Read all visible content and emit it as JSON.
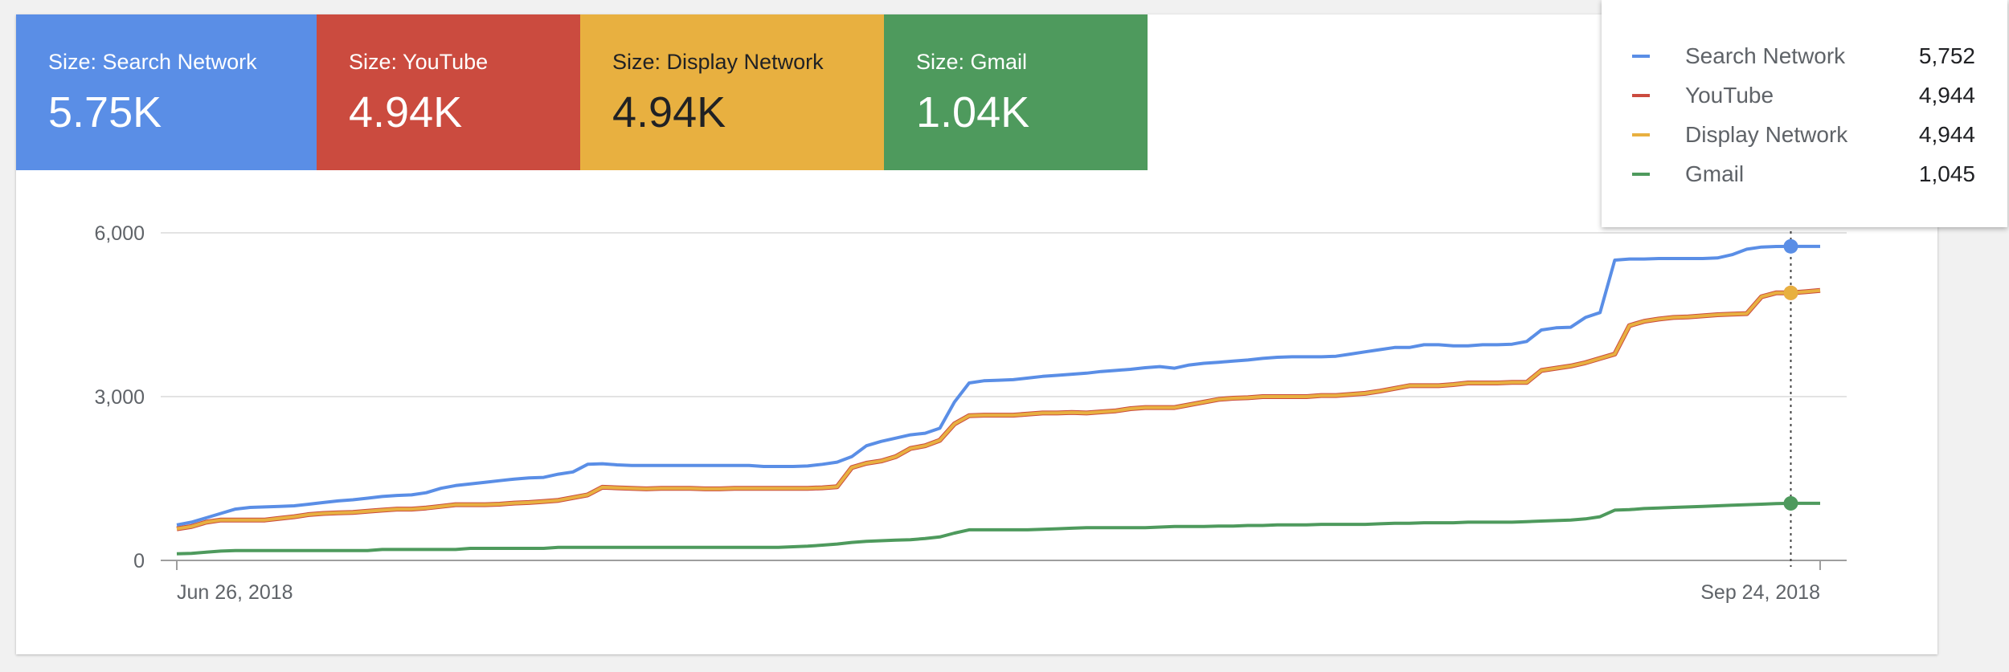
{
  "scorecards": [
    {
      "label": "Size: Search Network",
      "value": "5.75K",
      "color": "#5a8ee6"
    },
    {
      "label": "Size: YouTube",
      "value": "4.94K",
      "color": "#cb4b3f"
    },
    {
      "label": "Size: Display Network",
      "value": "4.94K",
      "color": "#e8b040"
    },
    {
      "label": "Size: Gmail",
      "value": "1.04K",
      "color": "#4e9a5d"
    }
  ],
  "tooltip": {
    "rows": [
      {
        "name": "Search Network",
        "value": "5,752",
        "color": "#5a8ee6"
      },
      {
        "name": "YouTube",
        "value": "4,944",
        "color": "#cb4b3f"
      },
      {
        "name": "Display Network",
        "value": "4,944",
        "color": "#e8b040"
      },
      {
        "name": "Gmail",
        "value": "1,045",
        "color": "#4e9a5d"
      }
    ]
  },
  "chart_data": {
    "type": "line",
    "x_start": "Jun 26, 2018",
    "x_end": "Sep 24, 2018",
    "x_tick_labels": [
      "Jun 26, 2018",
      "Sep 24, 2018"
    ],
    "ylim": [
      0,
      6000
    ],
    "y_ticks": [
      0,
      3000,
      6000
    ],
    "y_tick_labels": [
      "0",
      "3,000",
      "6,000"
    ],
    "grid": true,
    "hover_date": "Sep 24, 2018",
    "series": [
      {
        "name": "Search Network",
        "color": "#5a8ee6",
        "values": [
          650,
          700,
          780,
          860,
          940,
          970,
          980,
          990,
          1000,
          1030,
          1060,
          1090,
          1110,
          1140,
          1170,
          1190,
          1200,
          1240,
          1320,
          1370,
          1400,
          1430,
          1460,
          1490,
          1510,
          1520,
          1580,
          1620,
          1760,
          1770,
          1750,
          1740,
          1740,
          1740,
          1740,
          1740,
          1740,
          1740,
          1740,
          1740,
          1720,
          1720,
          1720,
          1730,
          1760,
          1800,
          1900,
          2100,
          2180,
          2240,
          2300,
          2330,
          2420,
          2900,
          3250,
          3290,
          3300,
          3310,
          3340,
          3370,
          3390,
          3410,
          3430,
          3460,
          3480,
          3500,
          3530,
          3550,
          3520,
          3580,
          3610,
          3630,
          3650,
          3670,
          3700,
          3720,
          3730,
          3730,
          3730,
          3740,
          3780,
          3820,
          3860,
          3900,
          3900,
          3950,
          3950,
          3930,
          3930,
          3950,
          3950,
          3960,
          4010,
          4220,
          4260,
          4270,
          4450,
          4540,
          5500,
          5520,
          5520,
          5530,
          5530,
          5530,
          5530,
          5540,
          5600,
          5700,
          5740,
          5750,
          5752,
          5752,
          5752
        ]
      },
      {
        "name": "YouTube",
        "color": "#cb4b3f",
        "values": [
          580,
          620,
          700,
          740,
          740,
          740,
          740,
          770,
          800,
          840,
          860,
          870,
          880,
          900,
          920,
          940,
          940,
          960,
          990,
          1020,
          1020,
          1020,
          1030,
          1050,
          1060,
          1080,
          1100,
          1150,
          1200,
          1340,
          1330,
          1320,
          1310,
          1320,
          1320,
          1320,
          1310,
          1310,
          1320,
          1320,
          1320,
          1320,
          1320,
          1320,
          1330,
          1350,
          1700,
          1780,
          1820,
          1900,
          2050,
          2100,
          2200,
          2500,
          2650,
          2660,
          2660,
          2660,
          2680,
          2700,
          2700,
          2710,
          2700,
          2720,
          2740,
          2780,
          2800,
          2800,
          2800,
          2850,
          2900,
          2950,
          2970,
          2980,
          3000,
          3000,
          3000,
          3000,
          3020,
          3020,
          3040,
          3060,
          3100,
          3150,
          3200,
          3200,
          3200,
          3220,
          3250,
          3250,
          3250,
          3260,
          3260,
          3480,
          3520,
          3560,
          3620,
          3700,
          3780,
          4300,
          4380,
          4420,
          4450,
          4460,
          4480,
          4500,
          4510,
          4520,
          4830,
          4900,
          4900,
          4920,
          4944
        ]
      },
      {
        "name": "Display Network",
        "color": "#e8b040",
        "values": [
          580,
          620,
          700,
          740,
          740,
          740,
          740,
          770,
          800,
          840,
          860,
          870,
          880,
          900,
          920,
          940,
          940,
          960,
          990,
          1020,
          1020,
          1020,
          1030,
          1050,
          1060,
          1080,
          1100,
          1150,
          1200,
          1340,
          1330,
          1320,
          1310,
          1320,
          1320,
          1320,
          1310,
          1310,
          1320,
          1320,
          1320,
          1320,
          1320,
          1320,
          1330,
          1350,
          1700,
          1780,
          1820,
          1900,
          2050,
          2100,
          2200,
          2500,
          2650,
          2660,
          2660,
          2660,
          2680,
          2700,
          2700,
          2710,
          2700,
          2720,
          2740,
          2780,
          2800,
          2800,
          2800,
          2850,
          2900,
          2950,
          2970,
          2980,
          3000,
          3000,
          3000,
          3000,
          3020,
          3020,
          3040,
          3060,
          3100,
          3150,
          3200,
          3200,
          3200,
          3220,
          3250,
          3250,
          3250,
          3260,
          3260,
          3480,
          3520,
          3560,
          3620,
          3700,
          3780,
          4300,
          4380,
          4420,
          4450,
          4460,
          4480,
          4500,
          4510,
          4520,
          4830,
          4900,
          4900,
          4920,
          4944
        ]
      },
      {
        "name": "Gmail",
        "color": "#4e9a5d",
        "values": [
          120,
          130,
          150,
          170,
          180,
          180,
          180,
          180,
          180,
          180,
          180,
          180,
          180,
          180,
          200,
          200,
          200,
          200,
          200,
          200,
          220,
          220,
          220,
          220,
          220,
          220,
          240,
          240,
          240,
          240,
          240,
          240,
          240,
          240,
          240,
          240,
          240,
          240,
          240,
          240,
          240,
          240,
          250,
          260,
          280,
          300,
          330,
          350,
          360,
          370,
          380,
          400,
          430,
          500,
          560,
          560,
          560,
          560,
          560,
          570,
          580,
          590,
          600,
          600,
          600,
          600,
          600,
          610,
          620,
          620,
          620,
          630,
          630,
          640,
          640,
          650,
          650,
          650,
          660,
          660,
          660,
          660,
          670,
          680,
          680,
          690,
          690,
          690,
          700,
          700,
          700,
          700,
          710,
          720,
          730,
          740,
          760,
          800,
          920,
          930,
          950,
          960,
          970,
          980,
          990,
          1000,
          1010,
          1020,
          1030,
          1040,
          1045,
          1045,
          1045
        ]
      }
    ]
  }
}
